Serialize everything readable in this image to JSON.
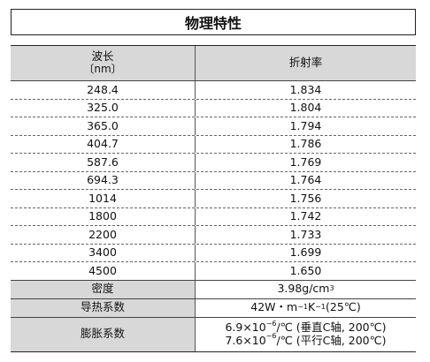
{
  "title": "物理特性",
  "header": {
    "wavelength_label": "波长",
    "wavelength_unit": "〔nm〕",
    "index_label": "折射率"
  },
  "rows": [
    {
      "wavelength": "248.4",
      "index": "1.834"
    },
    {
      "wavelength": "325.0",
      "index": "1.804"
    },
    {
      "wavelength": "365.0",
      "index": "1.794"
    },
    {
      "wavelength": "404.7",
      "index": "1.786"
    },
    {
      "wavelength": "587.6",
      "index": "1.769"
    },
    {
      "wavelength": "694.3",
      "index": "1.764"
    },
    {
      "wavelength": "1014",
      "index": "1.756"
    },
    {
      "wavelength": "1800",
      "index": "1.742"
    },
    {
      "wavelength": "2200",
      "index": "1.733"
    },
    {
      "wavelength": "3400",
      "index": "1.699"
    },
    {
      "wavelength": "4500",
      "index": "1.650"
    }
  ],
  "properties": {
    "density": {
      "label": "密度",
      "value": "3.98g/cm",
      "sup": "3"
    },
    "thermal_conductivity": {
      "label": "导热系数",
      "value_a": "42W・m",
      "sup1": "−1",
      "value_b": "K",
      "sup2": "−1",
      "value_c": " (25℃)"
    },
    "expansion": {
      "label": "膨胀系数",
      "line1_a": "6.9×10",
      "line1_sup": "−6",
      "line1_b": "/℃ (垂直C轴, 200℃)",
      "line2_a": "7.6×10",
      "line2_sup": "−6",
      "line2_b": "/℃ (平行C轴, 200℃)"
    }
  }
}
